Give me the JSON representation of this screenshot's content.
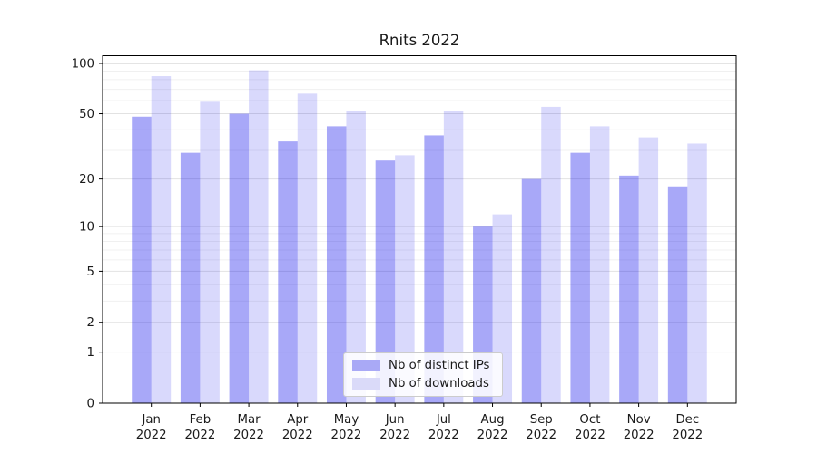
{
  "page": {
    "background": "#ffffff"
  },
  "chart_data": {
    "type": "bar",
    "title": "Rnits 2022",
    "categories": [
      "Jan",
      "Feb",
      "Mar",
      "Apr",
      "May",
      "Jun",
      "Jul",
      "Aug",
      "Sep",
      "Oct",
      "Nov",
      "Dec"
    ],
    "category_year_line": "2022",
    "series": [
      {
        "name": "Nb of distinct IPs",
        "values": [
          48,
          29,
          50,
          34,
          42,
          26,
          37,
          10,
          20,
          29,
          21,
          18
        ],
        "fill": "rgba(0,0,235,0.34)",
        "swatch_hex": "#a9a9f6"
      },
      {
        "name": "Nb of downloads",
        "values": [
          84,
          59,
          91,
          66,
          52,
          28,
          52,
          12,
          55,
          42,
          36,
          33
        ],
        "fill": "rgba(0,0,235,0.15)",
        "swatch_hex": "#dadaf9"
      }
    ],
    "y_scale": "log1p",
    "y_ticks": [
      0,
      1,
      2,
      5,
      10,
      20,
      50,
      100
    ],
    "y_minor_ticks": [
      3,
      4,
      6,
      7,
      8,
      9,
      30,
      40,
      60,
      70,
      80,
      90
    ],
    "ylim": [
      0,
      110
    ],
    "xlabel": "",
    "ylabel": "",
    "grid": true,
    "legend_position": "lower-center"
  },
  "colors": {
    "grid_major": "#e2e2e2",
    "grid_major_top": "#c9c9c9",
    "grid_minor": "#f0f0f0",
    "spine": "#000000",
    "text": "#1a1a1a"
  }
}
